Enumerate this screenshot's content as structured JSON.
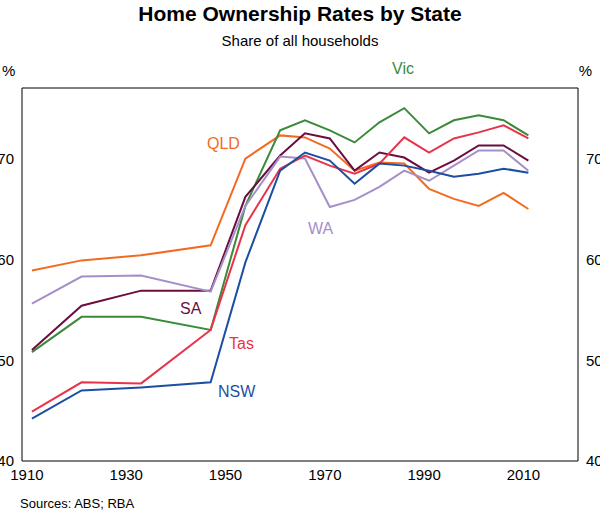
{
  "chart_data": {
    "type": "line",
    "title": "Home Ownership Rates by State",
    "subtitle": "Share of all households",
    "y_label": "%",
    "source": "Sources: ABS; RBA",
    "x": [
      1911,
      1921,
      1933,
      1947,
      1954,
      1961,
      1966,
      1971,
      1976,
      1981,
      1986,
      1991,
      1996,
      2001,
      2006,
      2011
    ],
    "series": [
      {
        "name": "QLD",
        "color": "#f26b21",
        "values": [
          58.9,
          59.9,
          60.4,
          61.4,
          70,
          72.3,
          72.1,
          71,
          68.8,
          69.6,
          69.5,
          67,
          66,
          65.3,
          66.6,
          65
        ]
      },
      {
        "name": "Vic",
        "color": "#3a8a3a",
        "values": [
          50.8,
          54.3,
          54.3,
          53,
          65.3,
          72.8,
          73.8,
          72.8,
          71.6,
          73.6,
          75,
          72.5,
          73.8,
          74.3,
          73.8,
          72.3
        ]
      },
      {
        "name": "SA",
        "color": "#6b0e3f",
        "values": [
          51,
          55.4,
          56.9,
          56.9,
          66.2,
          70.3,
          72.5,
          72,
          68.8,
          70.6,
          70.1,
          68.6,
          69.8,
          71.3,
          71.3,
          69.8
        ]
      },
      {
        "name": "WA",
        "color": "#a58fc9",
        "values": [
          55.6,
          58.3,
          58.4,
          56.8,
          65.3,
          70.2,
          70,
          65.2,
          65.9,
          67.2,
          68.8,
          67.8,
          69.3,
          70.8,
          70.8,
          68.8
        ]
      },
      {
        "name": "Tas",
        "color": "#e8334a",
        "values": [
          44.9,
          47.8,
          47.7,
          53,
          63.4,
          69,
          70.3,
          69.3,
          68.5,
          69.5,
          72.1,
          70.6,
          72,
          72.6,
          73.3,
          72
        ]
      },
      {
        "name": "NSW",
        "color": "#1c4fa1",
        "values": [
          44.2,
          47,
          47.3,
          47.8,
          59.7,
          68.8,
          70.6,
          69.8,
          67.5,
          69.5,
          69.3,
          68.8,
          68.2,
          68.5,
          69,
          68.6
        ]
      }
    ],
    "xlim": [
      1909,
      2021
    ],
    "xticks": [
      1910,
      1930,
      1950,
      1970,
      1990,
      2010
    ],
    "ylim": [
      40,
      77
    ],
    "yticks": [
      40,
      50,
      60,
      70
    ],
    "grid": false
  }
}
